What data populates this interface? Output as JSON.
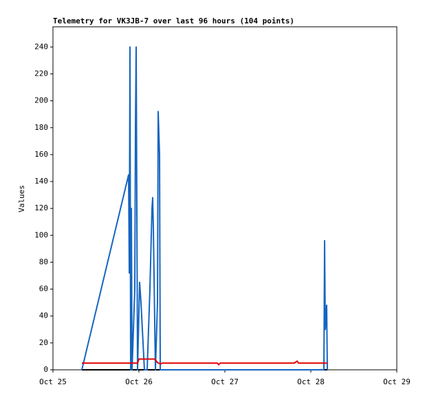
{
  "chart_data": {
    "type": "line",
    "title": "Telemetry for VK3JB-7 over last 96 hours (104 points)",
    "y_label": "Values",
    "xlim": [
      25,
      29
    ],
    "xticks": [
      {
        "value": 25,
        "label": "Oct 25"
      },
      {
        "value": 26,
        "label": "Oct 26"
      },
      {
        "value": 27,
        "label": "Oct 27"
      },
      {
        "value": 28,
        "label": "Oct 28"
      },
      {
        "value": 29,
        "label": "Oct 29"
      }
    ],
    "ylim": [
      0,
      255
    ],
    "yticks": [
      0,
      20,
      40,
      60,
      80,
      100,
      120,
      140,
      160,
      180,
      200,
      220,
      240
    ],
    "series": [
      {
        "color": "#000000",
        "x": [
          25.336,
          28.192
        ],
        "values": [
          0,
          0
        ]
      },
      {
        "color": "#1565c0",
        "x": [
          25.336,
          25.88,
          25.888,
          25.896,
          25.904,
          25.912,
          25.92,
          25.952,
          25.96,
          25.968,
          25.976,
          25.984,
          26.008,
          26.024,
          26.04,
          26.064,
          26.096,
          26.128,
          26.152,
          26.16,
          26.168,
          26.192,
          26.216,
          26.224,
          26.24,
          26.248,
          28.152,
          28.16,
          28.168,
          28.184,
          28.192
        ],
        "values": [
          0,
          145,
          72,
          240,
          0,
          120,
          0,
          60,
          180,
          240,
          120,
          0,
          65,
          50,
          30,
          0,
          0,
          60,
          120,
          128,
          105,
          0,
          50,
          192,
          160,
          0,
          0,
          96,
          30,
          48,
          0
        ]
      },
      {
        "color": "#e00000",
        "x": [
          25.336,
          25.984,
          26.0,
          26.184,
          26.208,
          26.224,
          26.256,
          26.272,
          26.912,
          26.928,
          26.944,
          27.808,
          27.84,
          27.856,
          28.192
        ],
        "values": [
          5,
          5,
          8,
          8,
          6,
          5,
          4.5,
          5,
          5,
          3.8,
          5,
          5,
          6.5,
          5,
          5
        ]
      }
    ]
  }
}
